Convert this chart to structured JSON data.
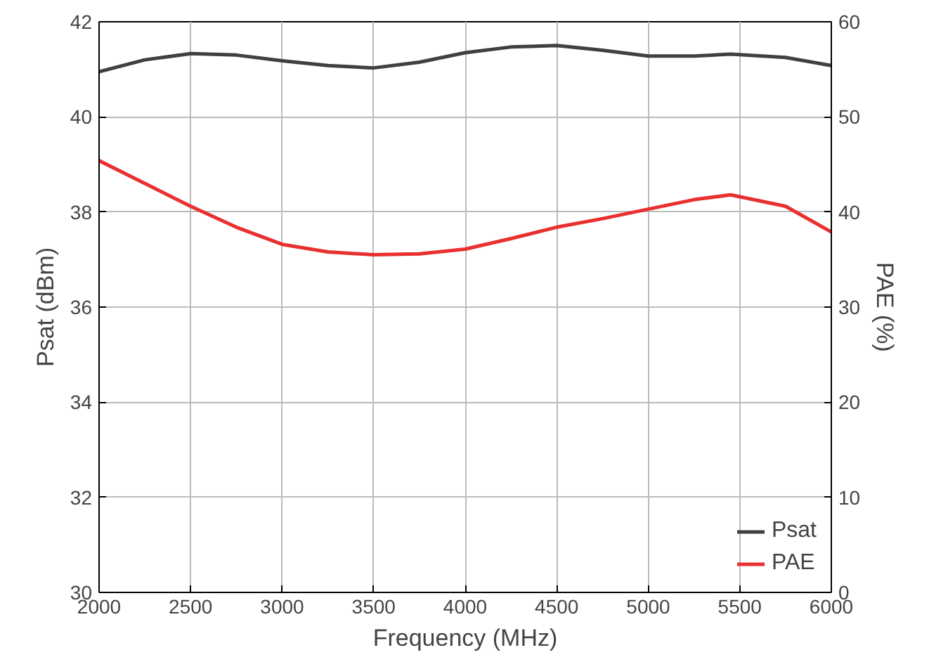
{
  "chart_data": {
    "type": "line",
    "xlabel": "Frequency (MHz)",
    "ylabel": "Psat (dBm)",
    "y2label": "PAE (%)",
    "x": [
      2000,
      2250,
      2500,
      2750,
      3000,
      3250,
      3500,
      3750,
      4000,
      4250,
      4500,
      4750,
      5000,
      5250,
      5450,
      5750,
      6000
    ],
    "series": [
      {
        "name": "Psat",
        "color": "#404040",
        "values": [
          40.95,
          41.2,
          41.33,
          41.3,
          41.18,
          41.08,
          41.03,
          41.15,
          41.35,
          41.47,
          41.5,
          41.4,
          41.28,
          41.28,
          41.32,
          41.25,
          41.08
        ]
      },
      {
        "name": "PAE",
        "color": "#e8302f",
        "axis": "y2",
        "values": [
          45.4,
          43.0,
          40.6,
          38.4,
          36.6,
          35.8,
          35.5,
          35.6,
          36.1,
          37.2,
          38.4,
          39.3,
          40.3,
          41.3,
          41.8,
          40.6,
          37.9
        ]
      }
    ],
    "xlim": [
      2000,
      6000
    ],
    "xticks": [
      2000,
      2500,
      3000,
      3500,
      4000,
      4500,
      5000,
      5500,
      6000
    ],
    "ylim": [
      30,
      42
    ],
    "yticks": [
      30,
      32,
      34,
      36,
      38,
      40,
      42
    ],
    "y2lim": [
      0,
      60
    ],
    "y2ticks": [
      0,
      10,
      20,
      30,
      40,
      50,
      60
    ],
    "grid": true,
    "legend": "bottom right",
    "line_style": "solid"
  }
}
